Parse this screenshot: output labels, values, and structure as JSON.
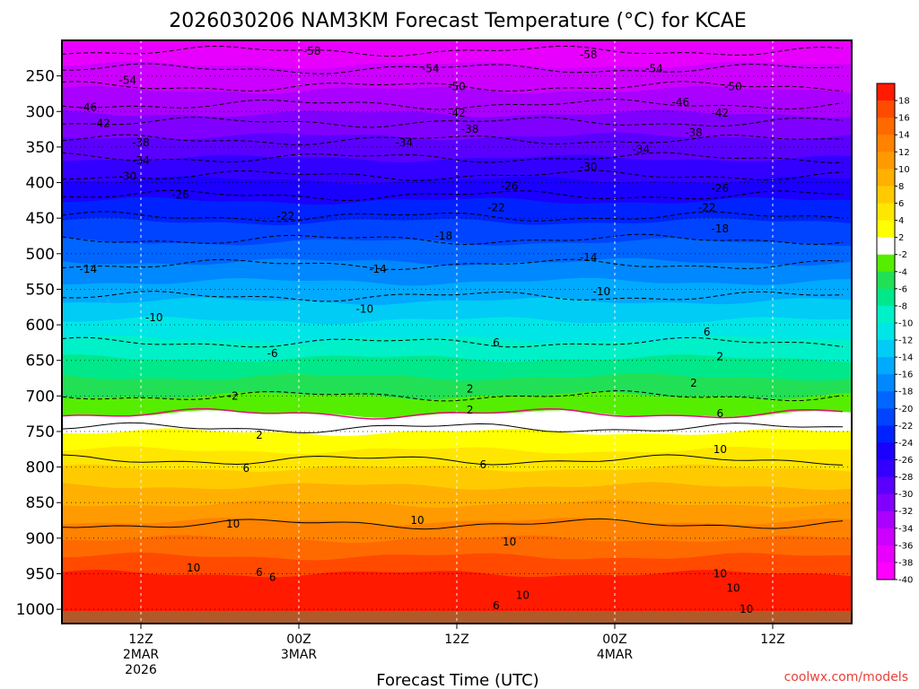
{
  "chart_data": {
    "type": "heatmap",
    "title": "2026030206 NAM3KM Forecast Temperature (°C) for KCAE",
    "xlabel": "Forecast Time (UTC)",
    "ylabel": "",
    "credit": "coolwx.com/models",
    "x_ticks": [
      {
        "hour": 6,
        "lines": [
          "12Z",
          "2MAR",
          "2026"
        ]
      },
      {
        "hour": 18,
        "lines": [
          "00Z",
          "3MAR"
        ]
      },
      {
        "hour": 30,
        "lines": [
          "12Z"
        ]
      },
      {
        "hour": 42,
        "lines": [
          "00Z",
          "4MAR"
        ]
      },
      {
        "hour": 54,
        "lines": [
          "12Z"
        ]
      }
    ],
    "xlim_hours": [
      0,
      60
    ],
    "y_ticks": [
      250,
      300,
      350,
      400,
      450,
      500,
      550,
      600,
      650,
      700,
      750,
      800,
      850,
      900,
      950,
      1000
    ],
    "ylim_hpa": [
      1020,
      200
    ],
    "colorbar": {
      "labels": [
        "18",
        "16",
        "14",
        "12",
        "10",
        "8",
        "6",
        "4",
        "2",
        "-2",
        "-4",
        "-6",
        "-8",
        "-10",
        "-12",
        "-14",
        "-16",
        "-18",
        "-20",
        "-22",
        "-24",
        "-26",
        "-28",
        "-30",
        "-32",
        "-34",
        "-36",
        "-38",
        "-40"
      ],
      "colors": [
        "#ff1a00",
        "#ff4a00",
        "#ff6a00",
        "#ff8200",
        "#ff9a00",
        "#ffb000",
        "#ffcb00",
        "#ffe600",
        "#ffff00",
        "#ffffff",
        "#55ee00",
        "#22e055",
        "#00e88a",
        "#00f0c8",
        "#00e6e6",
        "#00ccf5",
        "#00aaff",
        "#0088ff",
        "#0066ff",
        "#0044ff",
        "#0022ff",
        "#1a00ff",
        "#3300ff",
        "#5a00ff",
        "#8000ff",
        "#aa00ff",
        "#cc00ff",
        "#e800ff",
        "#ff00ff"
      ]
    },
    "ground_color": "#b05a2a",
    "contour_levels": [
      {
        "value": -58,
        "pressure": 215
      },
      {
        "value": -54,
        "pressure": 240
      },
      {
        "value": -50,
        "pressure": 265
      },
      {
        "value": -46,
        "pressure": 290
      },
      {
        "value": -42,
        "pressure": 315
      },
      {
        "value": -38,
        "pressure": 340
      },
      {
        "value": -34,
        "pressure": 365
      },
      {
        "value": -30,
        "pressure": 390
      },
      {
        "value": -26,
        "pressure": 418
      },
      {
        "value": -22,
        "pressure": 448
      },
      {
        "value": -18,
        "pressure": 480
      },
      {
        "value": -14,
        "pressure": 515
      },
      {
        "value": -10,
        "pressure": 560
      },
      {
        "value": -6,
        "pressure": 625
      },
      {
        "value": -2,
        "pressure": 700
      },
      {
        "value": 0,
        "pressure": 725
      },
      {
        "value": 2,
        "pressure": 745
      },
      {
        "value": 6,
        "pressure": 790
      },
      {
        "value": 10,
        "pressure": 880
      }
    ],
    "contour_labels": [
      {
        "text": "-58",
        "hour": 19,
        "pressure": 215
      },
      {
        "text": "-58",
        "hour": 40,
        "pressure": 220
      },
      {
        "text": "-54",
        "hour": 5,
        "pressure": 256
      },
      {
        "text": "-54",
        "hour": 28,
        "pressure": 240
      },
      {
        "text": "-54",
        "hour": 45,
        "pressure": 240
      },
      {
        "text": "-50",
        "hour": 30,
        "pressure": 265
      },
      {
        "text": "-50",
        "hour": 51,
        "pressure": 265
      },
      {
        "text": "-46",
        "hour": 2,
        "pressure": 294
      },
      {
        "text": "-46",
        "hour": 47,
        "pressure": 287
      },
      {
        "text": "-42",
        "hour": 3,
        "pressure": 317
      },
      {
        "text": "-42",
        "hour": 30,
        "pressure": 302
      },
      {
        "text": "-42",
        "hour": 50,
        "pressure": 302
      },
      {
        "text": "-38",
        "hour": 6,
        "pressure": 344
      },
      {
        "text": "-38",
        "hour": 31,
        "pressure": 325
      },
      {
        "text": "-38",
        "hour": 48,
        "pressure": 330
      },
      {
        "text": "-34",
        "hour": 6,
        "pressure": 369
      },
      {
        "text": "-34",
        "hour": 26,
        "pressure": 344
      },
      {
        "text": "-34",
        "hour": 44,
        "pressure": 353
      },
      {
        "text": "-30",
        "hour": 5,
        "pressure": 391
      },
      {
        "text": "-30",
        "hour": 40,
        "pressure": 378
      },
      {
        "text": "-26",
        "hour": 9,
        "pressure": 417
      },
      {
        "text": "-26",
        "hour": 34,
        "pressure": 405
      },
      {
        "text": "-26",
        "hour": 50,
        "pressure": 408
      },
      {
        "text": "-22",
        "hour": 17,
        "pressure": 447
      },
      {
        "text": "-22",
        "hour": 33,
        "pressure": 435
      },
      {
        "text": "-22",
        "hour": 49,
        "pressure": 435
      },
      {
        "text": "-18",
        "hour": 29,
        "pressure": 475
      },
      {
        "text": "-18",
        "hour": 50,
        "pressure": 465
      },
      {
        "text": "-14",
        "hour": 2,
        "pressure": 522
      },
      {
        "text": "-14",
        "hour": 24,
        "pressure": 522
      },
      {
        "text": "-14",
        "hour": 40,
        "pressure": 505
      },
      {
        "text": "-10",
        "hour": 7,
        "pressure": 590
      },
      {
        "text": "-10",
        "hour": 23,
        "pressure": 578
      },
      {
        "text": "-10",
        "hour": 41,
        "pressure": 553
      },
      {
        "text": "-6",
        "hour": 16,
        "pressure": 640
      },
      {
        "text": "6",
        "hour": 33,
        "pressure": 625
      },
      {
        "text": "6",
        "hour": 49,
        "pressure": 610
      },
      {
        "text": "2",
        "hour": 50,
        "pressure": 645
      },
      {
        "text": "-2",
        "hour": 13,
        "pressure": 700
      },
      {
        "text": "2",
        "hour": 31,
        "pressure": 690
      },
      {
        "text": "2",
        "hour": 31,
        "pressure": 720
      },
      {
        "text": "2",
        "hour": 48,
        "pressure": 682
      },
      {
        "text": "2",
        "hour": 15,
        "pressure": 755
      },
      {
        "text": "6",
        "hour": 14,
        "pressure": 802
      },
      {
        "text": "6",
        "hour": 32,
        "pressure": 797
      },
      {
        "text": "6",
        "hour": 50,
        "pressure": 725
      },
      {
        "text": "10",
        "hour": 50,
        "pressure": 775
      },
      {
        "text": "10",
        "hour": 13,
        "pressure": 880
      },
      {
        "text": "10",
        "hour": 27,
        "pressure": 875
      },
      {
        "text": "10",
        "hour": 34,
        "pressure": 905
      },
      {
        "text": "10",
        "hour": 10,
        "pressure": 942
      },
      {
        "text": "6",
        "hour": 15,
        "pressure": 948
      },
      {
        "text": "6",
        "hour": 16,
        "pressure": 955
      },
      {
        "text": "10",
        "hour": 50,
        "pressure": 950
      },
      {
        "text": "10",
        "hour": 51,
        "pressure": 970
      },
      {
        "text": "10",
        "hour": 35,
        "pressure": 980
      },
      {
        "text": "6",
        "hour": 33,
        "pressure": 995
      },
      {
        "text": "10",
        "hour": 52,
        "pressure": 1000
      }
    ]
  }
}
